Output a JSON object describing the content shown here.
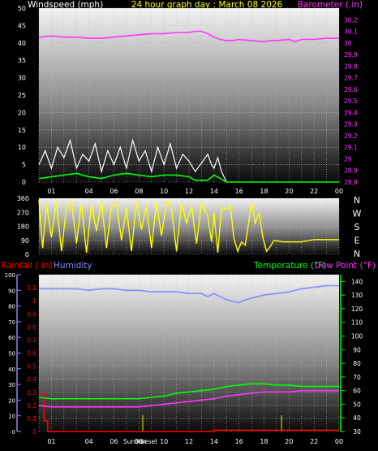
{
  "header": {
    "left_title": "Windspeed (mph)",
    "center_title": "24 hour graph day : March 08 2026",
    "right_title": "Barometer (.in)"
  },
  "colors": {
    "background": "#000000",
    "wind_title": "#ffffff",
    "center_title": "#ffff00",
    "barometer": "#ff33ff",
    "windspeed": "#ffffff",
    "wind_avg": "#00ff00",
    "direction": "#ffff00",
    "rainfall": "#ff0000",
    "humidity": "#8888ff",
    "temperature": "#00ff00",
    "dewpoint": "#ff33ff"
  },
  "chart_data": [
    {
      "type": "line",
      "name": "wind-barometer",
      "x_ticks": [
        "01",
        "04",
        "06",
        "08",
        "10",
        "12",
        "14",
        "16",
        "18",
        "20",
        "22",
        "00"
      ],
      "x_range_hours": [
        0,
        24
      ],
      "left_axis": {
        "title": "Windspeed (mph)",
        "ylim": [
          0,
          50
        ],
        "ticks": [
          0,
          5,
          10,
          15,
          20,
          25,
          30,
          35,
          40,
          45,
          50
        ]
      },
      "right_axis": {
        "title": "Barometer (.in)",
        "ylim": [
          28.8,
          30.3
        ],
        "ticks": [
          "30.2",
          "30.1",
          "30",
          "29.9",
          "29.8",
          "29.7",
          "29.6",
          "29.5",
          "29.4",
          "29.3",
          "29.2",
          "29.1",
          "29",
          "28.9",
          "28.8"
        ]
      },
      "series": [
        {
          "axis": "right",
          "color": "#ff33ff",
          "x": [
            0,
            1,
            2,
            3,
            4,
            5,
            6,
            7,
            8,
            9,
            10,
            11,
            12,
            12.5,
            13,
            13.5,
            14,
            14.5,
            15,
            15.5,
            16,
            17,
            18,
            18.5,
            19,
            20,
            20.5,
            21,
            22,
            23,
            24
          ],
          "y": [
            30.05,
            30.06,
            30.05,
            30.05,
            30.04,
            30.04,
            30.05,
            30.06,
            30.07,
            30.08,
            30.08,
            30.09,
            30.09,
            30.1,
            30.1,
            30.08,
            30.05,
            30.03,
            30.02,
            30.02,
            30.03,
            30.02,
            30.01,
            30.02,
            30.02,
            30.03,
            30.01,
            30.03,
            30.03,
            30.04,
            30.04
          ]
        },
        {
          "axis": "left",
          "color": "#ffffff",
          "kind": "gust",
          "x": [
            0,
            0.5,
            1,
            1.5,
            2,
            2.5,
            3,
            3.5,
            4,
            4.5,
            5,
            5.5,
            6,
            6.5,
            7,
            7.5,
            8,
            8.5,
            9,
            9.5,
            10,
            10.5,
            11,
            11.5,
            12,
            12.5,
            13.5,
            13.8,
            14,
            14.3,
            14.6,
            15
          ],
          "y": [
            5,
            9,
            4,
            10,
            7,
            12,
            4,
            8,
            6,
            11,
            3,
            9,
            5,
            10,
            4,
            12,
            6,
            9,
            3,
            10,
            5,
            11,
            4,
            8,
            6,
            3,
            8,
            5,
            4,
            7,
            3,
            0
          ]
        },
        {
          "axis": "left",
          "color": "#00ff00",
          "kind": "average",
          "x": [
            0,
            1,
            2,
            3,
            4,
            5,
            6,
            7,
            8,
            9,
            10,
            11,
            12,
            12.5,
            13.5,
            14,
            14.5,
            15,
            16,
            18,
            20,
            22,
            24
          ],
          "y": [
            1,
            1.5,
            2,
            2.5,
            1.5,
            1,
            2,
            2.5,
            2,
            1.5,
            2,
            2,
            1.5,
            0.5,
            0.5,
            2,
            1,
            0,
            0,
            0,
            0,
            0,
            0
          ]
        }
      ]
    },
    {
      "type": "line",
      "name": "wind-direction",
      "x_range_hours": [
        0,
        24
      ],
      "y_ticks": [
        0,
        90,
        180,
        270,
        360
      ],
      "ylim": [
        0,
        360
      ],
      "compass_labels": [
        "N",
        "W",
        "S",
        "E",
        "N"
      ],
      "series": [
        {
          "color": "#ffff00",
          "x": [
            0,
            0.3,
            0.6,
            1,
            1.4,
            1.8,
            2.2,
            2.6,
            3,
            3.4,
            3.8,
            4.2,
            4.6,
            5,
            5.4,
            5.8,
            6.2,
            6.6,
            7,
            7.4,
            7.8,
            8.2,
            8.6,
            9,
            9.4,
            9.8,
            10.2,
            10.6,
            11,
            11.4,
            11.8,
            12.2,
            12.6,
            13,
            13.5,
            13.8,
            14,
            14.3,
            14.6,
            15,
            15.3,
            15.6,
            15.9,
            16.2,
            16.5,
            17,
            17.3,
            17.6,
            17.9,
            18.2,
            18.5,
            18.8,
            19.5,
            21,
            22,
            24
          ],
          "y": [
            350,
            40,
            320,
            110,
            340,
            20,
            300,
            340,
            70,
            330,
            10,
            320,
            150,
            340,
            40,
            310,
            330,
            90,
            300,
            20,
            340,
            160,
            310,
            40,
            330,
            120,
            340,
            300,
            20,
            330,
            200,
            310,
            70,
            330,
            250,
            80,
            270,
            10,
            300,
            290,
            310,
            100,
            20,
            80,
            60,
            330,
            200,
            270,
            110,
            20,
            50,
            90,
            80,
            80,
            95,
            95
          ]
        }
      ]
    },
    {
      "type": "line",
      "name": "rain-humidity-temperature",
      "x_range_hours": [
        0,
        24
      ],
      "left_axis": {
        "title": "Rainfall (.in)",
        "ylim": [
          0,
          1.2
        ],
        "ticks": [
          "0",
          "0.1",
          "0.2",
          "0.3",
          "0.4",
          "0.5",
          "0.6",
          "0.7",
          "0.8",
          "0.9",
          "1",
          "1.1"
        ]
      },
      "humidity_axis": {
        "title": "Humidity",
        "ylim": [
          0,
          100
        ],
        "ticks": [
          0,
          10,
          20,
          30,
          40,
          50,
          60,
          70,
          80,
          90,
          100
        ]
      },
      "right_axis": {
        "title": "Temperature (°F)",
        "ylim": [
          30,
          145
        ],
        "ticks": [
          30,
          40,
          50,
          60,
          70,
          80,
          90,
          100,
          110,
          120,
          130,
          140
        ]
      },
      "dewpoint_title": "Dew Point (°F)",
      "x_ticks": [
        "01",
        "04",
        "06",
        "08",
        "10",
        "12",
        "14",
        "16",
        "18",
        "20",
        "22",
        "00"
      ],
      "sun_labels": [
        "Sun rise",
        "Sun set"
      ],
      "series": [
        {
          "name": "Rainfall (.in)",
          "axis": "left",
          "color": "#ff0000",
          "x": [
            0,
            0.4,
            0.4,
            0.7,
            0.7,
            14,
            14,
            24
          ],
          "y": [
            0.29,
            0.29,
            0.08,
            0.08,
            0,
            0,
            0.01,
            0.01
          ]
        },
        {
          "name": "Humidity",
          "axis": "humidity",
          "color": "#8888ff",
          "x": [
            0,
            1,
            2,
            3,
            4,
            5,
            6,
            7,
            8,
            9,
            10,
            11,
            12,
            13,
            13.5,
            14,
            14.5,
            15,
            16,
            16.5,
            17,
            18,
            19,
            20,
            21,
            22,
            23,
            24
          ],
          "y": [
            91,
            91,
            91,
            91,
            90,
            91,
            91,
            90,
            90,
            89,
            89,
            89,
            88,
            88,
            86,
            88,
            86,
            84,
            82,
            84,
            85,
            87,
            88,
            89,
            91,
            92,
            93,
            93
          ]
        },
        {
          "name": "Temperature (°F)",
          "axis": "right",
          "color": "#00ff00",
          "x": [
            0,
            1,
            2,
            3,
            4,
            5,
            6,
            7,
            8,
            9,
            10,
            11,
            12,
            13,
            14,
            15,
            16,
            17,
            18,
            19,
            20,
            21,
            22,
            23,
            24
          ],
          "y": [
            55,
            54,
            54,
            54,
            54,
            54,
            54,
            54,
            54,
            55,
            56,
            58,
            59,
            60,
            61,
            63,
            64,
            65,
            65,
            64,
            64,
            63,
            63,
            63,
            63
          ]
        },
        {
          "name": "Dew Point (°F)",
          "axis": "right",
          "color": "#ff33ff",
          "x": [
            0,
            1,
            2,
            3,
            4,
            5,
            6,
            7,
            8,
            9,
            10,
            11,
            12,
            13,
            14,
            15,
            16,
            17,
            18,
            19,
            20,
            21,
            22,
            23,
            24
          ],
          "y": [
            49,
            48,
            48,
            48,
            48,
            48,
            48,
            48,
            48,
            49,
            50,
            51,
            52,
            53,
            54,
            56,
            57,
            58,
            59,
            59,
            59,
            60,
            60,
            60,
            60
          ]
        }
      ],
      "sun_markers_hours": [
        8.3,
        19.4
      ]
    }
  ]
}
